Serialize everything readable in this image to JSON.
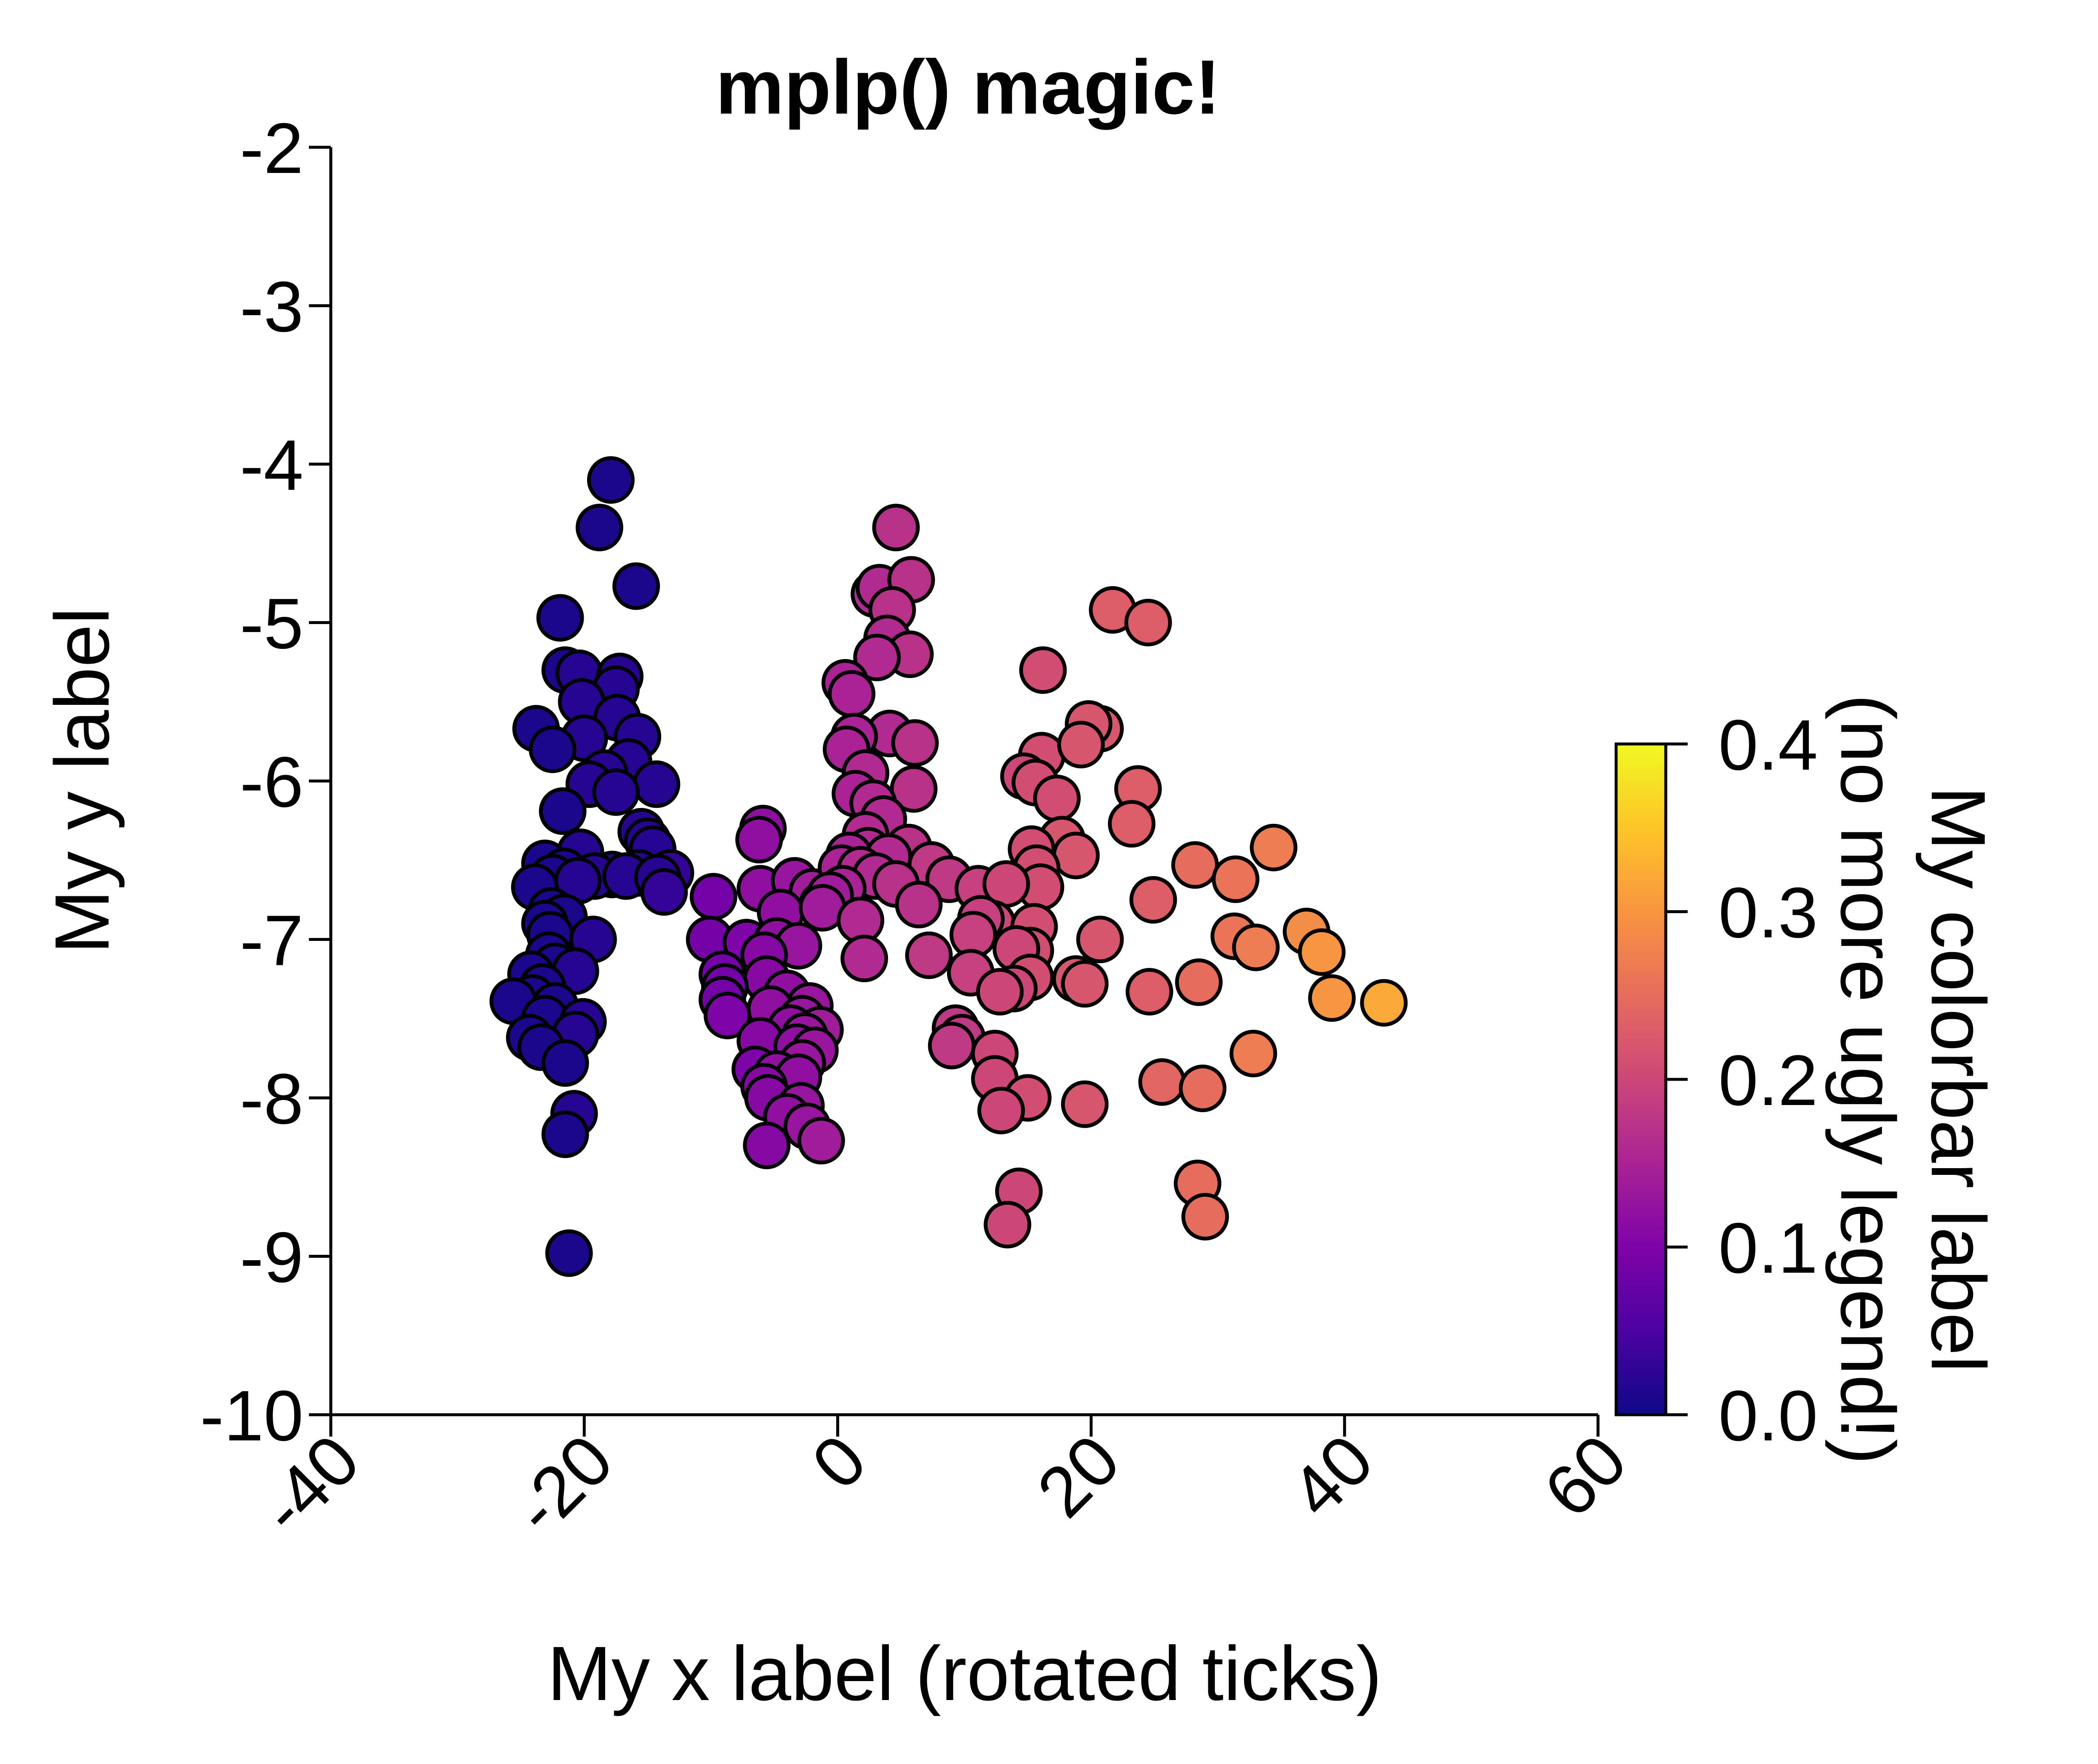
{
  "chart_data": {
    "type": "scatter",
    "title": "mplp() magic!",
    "xlabel": "My x label (rotated ticks)",
    "ylabel": "My y label",
    "xlim": [
      -40,
      60
    ],
    "ylim": [
      -10,
      -2
    ],
    "x_ticks": [
      "-40",
      "-20",
      "0",
      "20",
      "40",
      "60"
    ],
    "y_ticks": [
      "-2",
      "-3",
      "-4",
      "-5",
      "-6",
      "-7",
      "-8",
      "-9",
      "-10"
    ],
    "x_tick_rotation_deg": 45,
    "grid": false,
    "colormap": "plasma",
    "marker_edge_color": "#000000",
    "colorbar": {
      "label_line1": "My colorbar label",
      "label_line2": "(no more ugly legend!)",
      "range": [
        0.0,
        0.4
      ],
      "ticks": [
        "0.0",
        "0.1",
        "0.2",
        "0.3",
        "0.4"
      ]
    },
    "points": [
      [
        -17.9,
        -4.1,
        0.01
      ],
      [
        -18.8,
        -4.4,
        0.01
      ],
      [
        -15.9,
        -4.77,
        0.01
      ],
      [
        -21.9,
        -4.97,
        0.01
      ],
      [
        -21.5,
        -5.3,
        0.01
      ],
      [
        -20.4,
        -5.32,
        0.02
      ],
      [
        -17.2,
        -5.34,
        0.02
      ],
      [
        -17.5,
        -5.42,
        0.02
      ],
      [
        -20.2,
        -5.5,
        0.02
      ],
      [
        -17.4,
        -5.6,
        0.02
      ],
      [
        -23.8,
        -5.67,
        0.01
      ],
      [
        -20.0,
        -5.73,
        0.02
      ],
      [
        -15.8,
        -5.72,
        0.02
      ],
      [
        -22.5,
        -5.8,
        0.01
      ],
      [
        -16.5,
        -5.88,
        0.02
      ],
      [
        -18.4,
        -5.95,
        0.02
      ],
      [
        -19.6,
        -6.02,
        0.02
      ],
      [
        -14.3,
        -6.02,
        0.02
      ],
      [
        -17.5,
        -6.07,
        0.02
      ],
      [
        -21.7,
        -6.19,
        0.01
      ],
      [
        -15.5,
        -6.32,
        0.02
      ],
      [
        -15.0,
        -6.38,
        0.02
      ],
      [
        -14.6,
        -6.43,
        0.02
      ],
      [
        -20.3,
        -6.45,
        0.02
      ],
      [
        -23.1,
        -6.52,
        0.01
      ],
      [
        -21.6,
        -6.57,
        0.01
      ],
      [
        -13.2,
        -6.58,
        0.03
      ],
      [
        -15.7,
        -6.58,
        0.02
      ],
      [
        -17.8,
        -6.59,
        0.02
      ],
      [
        -19.2,
        -6.6,
        0.02
      ],
      [
        -22.5,
        -6.61,
        0.01
      ],
      [
        -16.7,
        -6.6,
        0.02
      ],
      [
        -14.2,
        -6.61,
        0.02
      ],
      [
        -20.5,
        -6.63,
        0.02
      ],
      [
        -23.9,
        -6.67,
        0.01
      ],
      [
        -13.7,
        -6.7,
        0.03
      ],
      [
        -22.6,
        -6.82,
        0.01
      ],
      [
        -21.6,
        -6.86,
        0.01
      ],
      [
        -23.1,
        -6.9,
        0.01
      ],
      [
        -22.7,
        -6.97,
        0.01
      ],
      [
        -19.3,
        -7.0,
        0.02
      ],
      [
        -22.8,
        -7.1,
        0.01
      ],
      [
        -22.3,
        -7.17,
        0.01
      ],
      [
        -20.7,
        -7.2,
        0.02
      ],
      [
        -24.2,
        -7.22,
        0.01
      ],
      [
        -23.3,
        -7.3,
        0.01
      ],
      [
        -24.1,
        -7.37,
        0.01
      ],
      [
        -25.6,
        -7.39,
        0.01
      ],
      [
        -22.3,
        -7.42,
        0.01
      ],
      [
        -23.1,
        -7.5,
        0.01
      ],
      [
        -20.1,
        -7.52,
        0.02
      ],
      [
        -20.7,
        -7.6,
        0.02
      ],
      [
        -24.3,
        -7.62,
        0.01
      ],
      [
        -23.4,
        -7.68,
        0.01
      ],
      [
        -21.5,
        -7.78,
        0.01
      ],
      [
        -20.8,
        -8.1,
        0.02
      ],
      [
        -21.5,
        -8.23,
        0.01
      ],
      [
        -21.2,
        -8.98,
        0.01
      ],
      [
        -5.9,
        -6.3,
        0.12
      ],
      [
        -6.2,
        -6.37,
        0.12
      ],
      [
        -9.8,
        -6.73,
        0.09
      ],
      [
        -6.1,
        -6.68,
        0.12
      ],
      [
        -3.4,
        -6.63,
        0.13
      ],
      [
        -2.0,
        -6.7,
        0.14
      ],
      [
        -1.2,
        -6.78,
        0.14
      ],
      [
        -4.5,
        -6.83,
        0.12
      ],
      [
        -10.1,
        -7.0,
        0.09
      ],
      [
        -7.2,
        -7.02,
        0.1
      ],
      [
        -4.8,
        -7.01,
        0.12
      ],
      [
        -3.1,
        -7.04,
        0.13
      ],
      [
        -5.8,
        -7.1,
        0.11
      ],
      [
        -9.1,
        -7.22,
        0.09
      ],
      [
        -5.6,
        -7.25,
        0.11
      ],
      [
        -8.9,
        -7.3,
        0.09
      ],
      [
        -4.0,
        -7.34,
        0.12
      ],
      [
        -9.1,
        -7.38,
        0.09
      ],
      [
        -2.2,
        -7.42,
        0.13
      ],
      [
        -5.3,
        -7.44,
        0.12
      ],
      [
        -8.7,
        -7.48,
        0.1
      ],
      [
        -2.8,
        -7.5,
        0.13
      ],
      [
        -3.7,
        -7.56,
        0.12
      ],
      [
        -1.4,
        -7.57,
        0.14
      ],
      [
        -2.6,
        -7.61,
        0.13
      ],
      [
        -6.1,
        -7.64,
        0.11
      ],
      [
        -3.2,
        -7.68,
        0.12
      ],
      [
        -1.8,
        -7.7,
        0.13
      ],
      [
        -2.8,
        -7.78,
        0.13
      ],
      [
        -6.5,
        -7.82,
        0.1
      ],
      [
        -4.8,
        -7.85,
        0.12
      ],
      [
        -3.1,
        -7.87,
        0.12
      ],
      [
        -5.8,
        -7.93,
        0.11
      ],
      [
        -5.5,
        -8.0,
        0.11
      ],
      [
        -2.9,
        -8.05,
        0.13
      ],
      [
        -4.0,
        -8.12,
        0.12
      ],
      [
        -2.4,
        -8.18,
        0.13
      ],
      [
        -5.6,
        -8.3,
        0.11
      ],
      [
        -1.3,
        -8.27,
        0.14
      ],
      [
        4.6,
        -4.4,
        0.17
      ],
      [
        2.9,
        -4.82,
        0.16
      ],
      [
        3.3,
        -4.78,
        0.16
      ],
      [
        5.8,
        -4.73,
        0.17
      ],
      [
        4.3,
        -4.92,
        0.17
      ],
      [
        3.9,
        -5.1,
        0.16
      ],
      [
        5.7,
        -5.2,
        0.17
      ],
      [
        3.1,
        -5.22,
        0.16
      ],
      [
        0.6,
        -5.38,
        0.15
      ],
      [
        1.1,
        -5.45,
        0.15
      ],
      [
        4.1,
        -5.7,
        0.16
      ],
      [
        1.3,
        -5.72,
        0.15
      ],
      [
        0.7,
        -5.8,
        0.15
      ],
      [
        6.1,
        -5.76,
        0.17
      ],
      [
        2.2,
        -5.95,
        0.16
      ],
      [
        6.0,
        -6.05,
        0.17
      ],
      [
        1.4,
        -6.08,
        0.15
      ],
      [
        2.8,
        -6.14,
        0.16
      ],
      [
        3.6,
        -6.24,
        0.16
      ],
      [
        2.2,
        -6.34,
        0.16
      ],
      [
        5.6,
        -6.42,
        0.17
      ],
      [
        2.4,
        -6.44,
        0.16
      ],
      [
        0.9,
        -6.47,
        0.15
      ],
      [
        4.0,
        -6.48,
        0.16
      ],
      [
        7.4,
        -6.53,
        0.18
      ],
      [
        0.3,
        -6.55,
        0.15
      ],
      [
        1.8,
        -6.56,
        0.16
      ],
      [
        3.0,
        -6.6,
        0.16
      ],
      [
        8.8,
        -6.62,
        0.18
      ],
      [
        4.6,
        -6.65,
        0.17
      ],
      [
        0.4,
        -6.68,
        0.15
      ],
      [
        -0.6,
        -6.72,
        0.14
      ],
      [
        6.4,
        -6.78,
        0.17
      ],
      [
        -1.2,
        -6.8,
        0.14
      ],
      [
        1.8,
        -6.88,
        0.16
      ],
      [
        7.2,
        -7.1,
        0.18
      ],
      [
        2.1,
        -7.12,
        0.16
      ],
      [
        21.7,
        -4.92,
        0.23
      ],
      [
        24.5,
        -5.0,
        0.23
      ],
      [
        16.2,
        -5.3,
        0.21
      ],
      [
        16.1,
        -5.84,
        0.21
      ],
      [
        20.7,
        -5.67,
        0.22
      ],
      [
        19.8,
        -5.64,
        0.22
      ],
      [
        19.2,
        -5.77,
        0.22
      ],
      [
        14.7,
        -5.97,
        0.2
      ],
      [
        15.6,
        -6.01,
        0.21
      ],
      [
        17.3,
        -6.11,
        0.21
      ],
      [
        23.7,
        -6.05,
        0.23
      ],
      [
        23.2,
        -6.27,
        0.23
      ],
      [
        17.7,
        -6.37,
        0.22
      ],
      [
        18.8,
        -6.47,
        0.22
      ],
      [
        15.3,
        -6.43,
        0.21
      ],
      [
        15.7,
        -6.55,
        0.21
      ],
      [
        16.0,
        -6.67,
        0.21
      ],
      [
        24.9,
        -6.75,
        0.23
      ],
      [
        28.2,
        -6.53,
        0.25
      ],
      [
        31.4,
        -6.62,
        0.26
      ],
      [
        34.4,
        -6.42,
        0.27
      ],
      [
        11.1,
        -6.68,
        0.19
      ],
      [
        13.3,
        -6.65,
        0.2
      ],
      [
        12.2,
        -6.9,
        0.2
      ],
      [
        11.3,
        -6.87,
        0.19
      ],
      [
        15.5,
        -6.92,
        0.21
      ],
      [
        10.7,
        -6.97,
        0.19
      ],
      [
        20.7,
        -7.0,
        0.22
      ],
      [
        15.2,
        -7.07,
        0.21
      ],
      [
        31.3,
        -6.98,
        0.26
      ],
      [
        33.0,
        -7.05,
        0.27
      ],
      [
        37.0,
        -6.95,
        0.29
      ],
      [
        38.2,
        -7.08,
        0.3
      ],
      [
        14.1,
        -7.06,
        0.2
      ],
      [
        18.8,
        -7.25,
        0.22
      ],
      [
        19.5,
        -7.28,
        0.22
      ],
      [
        10.5,
        -7.21,
        0.19
      ],
      [
        15.2,
        -7.24,
        0.21
      ],
      [
        13.9,
        -7.31,
        0.2
      ],
      [
        12.8,
        -7.33,
        0.2
      ],
      [
        24.6,
        -7.33,
        0.23
      ],
      [
        28.5,
        -7.27,
        0.25
      ],
      [
        39.0,
        -7.37,
        0.3
      ],
      [
        43.1,
        -7.4,
        0.32
      ],
      [
        9.3,
        -7.56,
        0.18
      ],
      [
        9.8,
        -7.62,
        0.18
      ],
      [
        9.0,
        -7.67,
        0.18
      ],
      [
        12.4,
        -7.72,
        0.2
      ],
      [
        32.8,
        -7.72,
        0.27
      ],
      [
        12.4,
        -7.88,
        0.2
      ],
      [
        25.6,
        -7.9,
        0.24
      ],
      [
        28.8,
        -7.94,
        0.25
      ],
      [
        15.0,
        -8.0,
        0.21
      ],
      [
        19.5,
        -8.04,
        0.22
      ],
      [
        12.9,
        -8.08,
        0.2
      ],
      [
        14.3,
        -8.59,
        0.2
      ],
      [
        28.4,
        -8.54,
        0.25
      ],
      [
        13.4,
        -8.8,
        0.2
      ],
      [
        29.0,
        -8.75,
        0.25
      ]
    ]
  }
}
